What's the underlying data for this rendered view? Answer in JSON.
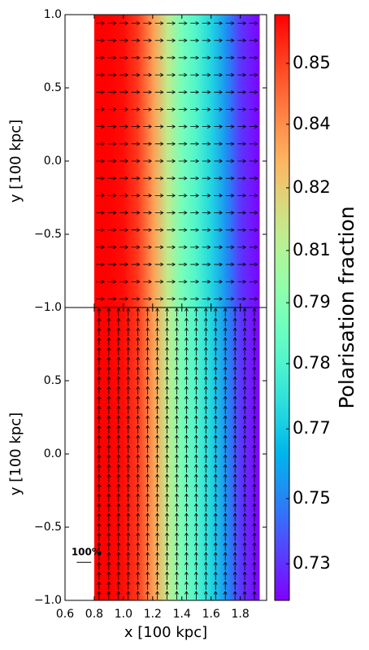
{
  "chart_data": {
    "type": "quiver",
    "xlabel": "x [100 kpc]",
    "xlim": [
      0.6,
      1.98
    ],
    "xticks": [
      0.6,
      0.8,
      {
        "value": 1,
        "label": "1.0"
      },
      1.2,
      1.4,
      1.6,
      1.8
    ],
    "x": [
      0.8,
      0.9,
      1.0,
      1.1,
      1.2,
      1.3,
      1.4,
      1.5,
      1.6,
      1.7,
      1.8,
      1.93
    ],
    "values": [
      0.86,
      0.86,
      0.858,
      0.85,
      0.832,
      0.81,
      0.79,
      0.78,
      0.768,
      0.752,
      0.735,
      0.726
    ],
    "colormap": "rainbow",
    "panels": [
      {
        "ylabel": "y [100 kpc]",
        "ylim": [
          -1,
          1
        ],
        "yticks": [
          {
            "value": -1,
            "label": "−1.0"
          },
          {
            "value": -0.5,
            "label": "−0.5"
          },
          {
            "value": 0,
            "label": "0.0"
          },
          0.5,
          {
            "value": 1,
            "label": "1.0"
          }
        ],
        "arrows": {
          "columns": 14,
          "rows": 17,
          "angle": 0
        }
      },
      {
        "ylabel": "y [100 kpc]",
        "ylim": [
          -1,
          1
        ],
        "yticks": [
          {
            "value": -1,
            "label": "−1.0"
          },
          {
            "value": -0.5,
            "label": "−0.5"
          },
          {
            "value": 0,
            "label": "0.0"
          },
          0.5
        ],
        "arrows": {
          "columns": 17,
          "rows": 30,
          "angle": 90
        },
        "annotation": {
          "text": "100%",
          "x": 0.73,
          "y": -0.74
        }
      }
    ],
    "colorbar": {
      "label": "Polarisation fraction",
      "clim": [
        0.7256,
        0.8602
      ],
      "ticks": [
        {
          "value": 0.734,
          "label": "0.73"
        },
        {
          "value": 0.749,
          "label": "0.75"
        },
        {
          "value": 0.765,
          "label": "0.77"
        },
        {
          "value": 0.78,
          "label": "0.78"
        },
        {
          "value": 0.794,
          "label": "0.79"
        },
        {
          "value": 0.806,
          "label": "0.81"
        },
        {
          "value": 0.8204,
          "label": "0.82"
        },
        {
          "value": 0.835,
          "label": "0.84"
        },
        {
          "value": 0.849,
          "label": "0.85"
        }
      ]
    }
  }
}
